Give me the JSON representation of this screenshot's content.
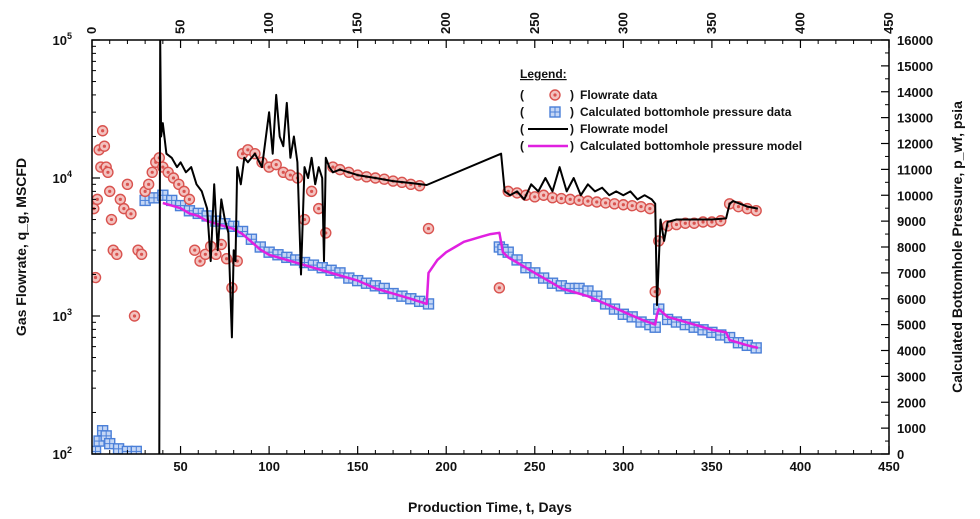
{
  "chart_data": {
    "type": "scatter",
    "xlabel": "Production Time, t, Days",
    "ylabel_left": "Gas Flowrate, q_g, MSCFD",
    "ylabel_right": "Calculated Bottomhole Pressure, p_wf, psia",
    "x_ticks": [
      50,
      100,
      150,
      200,
      250,
      300,
      350,
      400,
      450
    ],
    "x_top_ticks": [
      0,
      50,
      100,
      150,
      200,
      250,
      300,
      350,
      400,
      450
    ],
    "y_left_ticks": [
      "10^2",
      "10^3",
      "10^4",
      "10^5"
    ],
    "y_right_ticks": [
      0,
      1000,
      2000,
      3000,
      4000,
      5000,
      6000,
      7000,
      8000,
      9000,
      10000,
      11000,
      12000,
      13000,
      14000,
      15000,
      16000
    ],
    "y_left_log": true,
    "y_left_range": [
      100,
      100000
    ],
    "y_right_range": [
      0,
      16000
    ],
    "legend": {
      "title": "Legend:",
      "position": "top-right",
      "entries": [
        "Flowrate data",
        "Calculated bottomhole pressure data",
        "Flowrate model",
        "Calculated bottomhole pressure model"
      ]
    },
    "colors": {
      "flowrate_data": "#d9534f",
      "pressure_data": "#4a7fd8",
      "flowrate_model": "#000000",
      "pressure_model": "#e020e0"
    },
    "series": [
      {
        "name": "Flowrate data",
        "axis": "left",
        "x": [
          1,
          2,
          3,
          4,
          5,
          6,
          7,
          8,
          9,
          10,
          11,
          12,
          14,
          16,
          18,
          20,
          22,
          24,
          26,
          28,
          30,
          32,
          34,
          36,
          38,
          40,
          43,
          46,
          49,
          52,
          55,
          58,
          61,
          64,
          67,
          70,
          73,
          76,
          79,
          82,
          85,
          88,
          92,
          96,
          100,
          104,
          108,
          112,
          116,
          120,
          124,
          128,
          132,
          136,
          140,
          145,
          150,
          155,
          160,
          165,
          170,
          175,
          180,
          185,
          190,
          230,
          235,
          240,
          245,
          250,
          255,
          260,
          265,
          270,
          275,
          280,
          285,
          290,
          295,
          300,
          305,
          310,
          315,
          318,
          320,
          325,
          330,
          335,
          340,
          345,
          350,
          355,
          360,
          365,
          370,
          375
        ],
        "y": [
          6000,
          1900,
          7000,
          16000,
          12000,
          22000,
          17000,
          12000,
          11000,
          8000,
          5000,
          3000,
          2800,
          7000,
          6000,
          9000,
          5500,
          1000,
          3000,
          2800,
          8000,
          9000,
          11000,
          13000,
          14000,
          12000,
          11000,
          10000,
          9000,
          8000,
          7000,
          3000,
          2500,
          2800,
          3200,
          2800,
          3300,
          2600,
          1600,
          2500,
          15000,
          16000,
          15000,
          13000,
          12000,
          12500,
          11000,
          10500,
          10000,
          5000,
          8000,
          6000,
          4000,
          12000,
          11500,
          11000,
          10500,
          10200,
          10000,
          9800,
          9500,
          9300,
          9000,
          8800,
          4300,
          1600,
          8000,
          7800,
          7500,
          7300,
          7500,
          7200,
          7100,
          7000,
          6900,
          6800,
          6700,
          6600,
          6500,
          6400,
          6300,
          6200,
          6000,
          1500,
          3500,
          4500,
          4600,
          4700,
          4700,
          4800,
          4800,
          4900,
          6500,
          6200,
          6000,
          5800
        ],
        "marker": "circle"
      },
      {
        "name": "Calculated bottomhole pressure data",
        "axis": "right",
        "x": [
          2,
          4,
          6,
          8,
          10,
          15,
          20,
          25,
          30,
          35,
          40,
          45,
          50,
          55,
          60,
          65,
          70,
          75,
          80,
          85,
          90,
          95,
          100,
          105,
          110,
          115,
          120,
          125,
          130,
          135,
          140,
          145,
          150,
          155,
          160,
          165,
          170,
          175,
          180,
          185,
          190,
          230,
          232,
          235,
          240,
          245,
          250,
          255,
          260,
          265,
          270,
          275,
          280,
          285,
          290,
          295,
          300,
          305,
          310,
          315,
          318,
          320,
          325,
          330,
          335,
          340,
          345,
          350,
          355,
          360,
          365,
          370,
          375
        ],
        "y": [
          100,
          500,
          900,
          700,
          400,
          200,
          100,
          100,
          9800,
          9900,
          10000,
          9800,
          9600,
          9400,
          9300,
          9200,
          9000,
          8900,
          8800,
          8600,
          8300,
          8000,
          7800,
          7700,
          7600,
          7500,
          7400,
          7300,
          7200,
          7100,
          7000,
          6800,
          6700,
          6600,
          6500,
          6400,
          6200,
          6100,
          6000,
          5900,
          5800,
          8000,
          7900,
          7800,
          7500,
          7200,
          7000,
          6800,
          6600,
          6500,
          6400,
          6400,
          6300,
          6100,
          5800,
          5600,
          5400,
          5300,
          5100,
          5000,
          4900,
          5600,
          5200,
          5100,
          5000,
          4900,
          4800,
          4700,
          4600,
          4500,
          4300,
          4200,
          4100
        ],
        "marker": "square"
      },
      {
        "name": "Flowrate model",
        "axis": "left",
        "x": [
          38,
          38.5,
          39,
          40,
          42,
          45,
          48,
          50,
          53,
          56,
          59,
          62,
          65,
          67,
          69,
          71,
          73,
          75,
          77,
          79,
          80,
          81,
          82,
          84,
          86,
          88,
          92,
          96,
          100,
          102,
          104,
          106,
          108,
          110,
          112,
          114,
          116,
          118,
          120,
          122,
          124,
          126,
          128,
          130,
          131,
          132,
          134,
          136,
          140,
          150,
          160,
          170,
          180,
          189,
          231,
          233,
          236,
          240,
          244,
          248,
          252,
          256,
          260,
          264,
          268,
          272,
          276,
          280,
          284,
          288,
          292,
          296,
          300,
          304,
          308,
          312,
          316,
          318,
          319,
          321,
          323,
          325,
          330,
          340,
          350,
          358,
          360,
          362,
          366,
          370,
          376
        ],
        "y": [
          100,
          100000,
          20000,
          25000,
          15000,
          14000,
          12000,
          13000,
          11000,
          12000,
          9000,
          8000,
          6000,
          2500,
          9000,
          3000,
          7000,
          5000,
          4000,
          700,
          3000,
          2500,
          12000,
          9000,
          14000,
          13000,
          15000,
          12000,
          30000,
          15000,
          40000,
          20000,
          17000,
          35000,
          14000,
          20000,
          13000,
          2000,
          12000,
          10000,
          14000,
          9000,
          12000,
          10000,
          2500,
          14000,
          12000,
          11000,
          11500,
          10500,
          10000,
          9500,
          9200,
          8900,
          15000,
          8000,
          7500,
          8000,
          7000,
          9000,
          8000,
          10000,
          8000,
          12000,
          8000,
          10000,
          7500,
          9000,
          8000,
          8500,
          7500,
          8000,
          7500,
          8000,
          7000,
          7500,
          7000,
          6500,
          1200,
          5000,
          3500,
          4800,
          5000,
          5000,
          5000,
          5100,
          6500,
          6800,
          6500,
          6200,
          6000
        ],
        "style": "line"
      },
      {
        "name": "Calculated bottomhole pressure model",
        "axis": "right",
        "x": [
          40,
          45,
          50,
          55,
          60,
          65,
          70,
          75,
          80,
          85,
          90,
          95,
          100,
          110,
          120,
          130,
          140,
          150,
          160,
          170,
          180,
          189,
          190,
          195,
          200,
          205,
          210,
          215,
          220,
          225,
          230,
          232,
          235,
          240,
          245,
          250,
          255,
          260,
          265,
          270,
          280,
          290,
          300,
          310,
          318,
          319,
          320,
          325,
          330,
          340,
          350,
          358,
          360,
          365,
          370,
          376
        ],
        "y": [
          9700,
          9600,
          9500,
          9300,
          9200,
          9000,
          8900,
          8800,
          8700,
          8500,
          8200,
          7900,
          7700,
          7500,
          7300,
          7100,
          6900,
          6700,
          6400,
          6200,
          6000,
          5800,
          7000,
          7500,
          7800,
          8000,
          8200,
          8300,
          8400,
          8500,
          8550,
          7800,
          7600,
          7400,
          7200,
          7000,
          6800,
          6600,
          6400,
          6300,
          6100,
          5800,
          5500,
          5200,
          5000,
          5400,
          5600,
          5300,
          5200,
          5000,
          4800,
          4700,
          4400,
          4300,
          4200,
          4100
        ],
        "style": "line"
      }
    ]
  }
}
